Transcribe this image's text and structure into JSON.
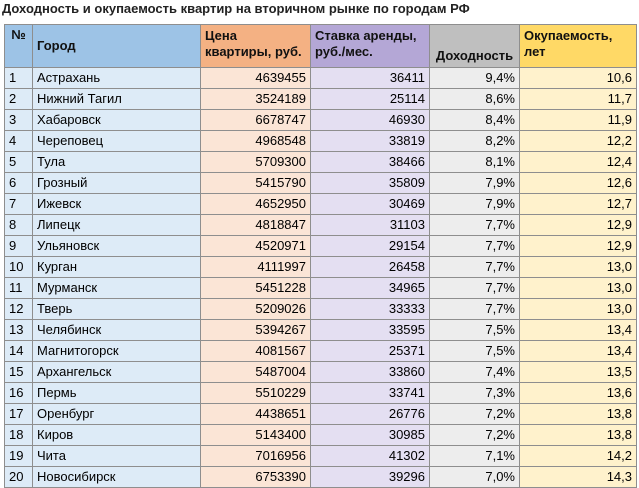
{
  "title": "Доходность и окупаемость квартир на вторичном рынке по городам РФ",
  "table": {
    "headers": {
      "num": "№",
      "city": "Город",
      "price": "Цена квартиры, руб.",
      "rent": "Ставка аренды, руб./мес.",
      "yield": "Доходность",
      "payback": "Окупаемость, лет"
    },
    "rows": [
      {
        "num": "1",
        "city": "Астрахань",
        "price": "4639455",
        "rent": "36411",
        "yield": "9,4%",
        "payback": "10,6"
      },
      {
        "num": "2",
        "city": "Нижний Тагил",
        "price": "3524189",
        "rent": "25114",
        "yield": "8,6%",
        "payback": "11,7"
      },
      {
        "num": "3",
        "city": "Хабаровск",
        "price": "6678747",
        "rent": "46930",
        "yield": "8,4%",
        "payback": "11,9"
      },
      {
        "num": "4",
        "city": "Череповец",
        "price": "4968548",
        "rent": "33819",
        "yield": "8,2%",
        "payback": "12,2"
      },
      {
        "num": "5",
        "city": "Тула",
        "price": "5709300",
        "rent": "38466",
        "yield": "8,1%",
        "payback": "12,4"
      },
      {
        "num": "6",
        "city": "Грозный",
        "price": "5415790",
        "rent": "35809",
        "yield": "7,9%",
        "payback": "12,6"
      },
      {
        "num": "7",
        "city": "Ижевск",
        "price": "4652950",
        "rent": "30469",
        "yield": "7,9%",
        "payback": "12,7"
      },
      {
        "num": "8",
        "city": "Липецк",
        "price": "4818847",
        "rent": "31103",
        "yield": "7,7%",
        "payback": "12,9"
      },
      {
        "num": "9",
        "city": "Ульяновск",
        "price": "4520971",
        "rent": "29154",
        "yield": "7,7%",
        "payback": "12,9"
      },
      {
        "num": "10",
        "city": "Курган",
        "price": "4111997",
        "rent": "26458",
        "yield": "7,7%",
        "payback": "13,0"
      },
      {
        "num": "11",
        "city": "Мурманск",
        "price": "5451228",
        "rent": "34965",
        "yield": "7,7%",
        "payback": "13,0"
      },
      {
        "num": "12",
        "city": "Тверь",
        "price": "5209026",
        "rent": "33333",
        "yield": "7,7%",
        "payback": "13,0"
      },
      {
        "num": "13",
        "city": "Челябинск",
        "price": "5394267",
        "rent": "33595",
        "yield": "7,5%",
        "payback": "13,4"
      },
      {
        "num": "14",
        "city": "Магнитогорск",
        "price": "4081567",
        "rent": "25371",
        "yield": "7,5%",
        "payback": "13,4"
      },
      {
        "num": "15",
        "city": "Архангельск",
        "price": "5487004",
        "rent": "33860",
        "yield": "7,4%",
        "payback": "13,5"
      },
      {
        "num": "16",
        "city": "Пермь",
        "price": "5510229",
        "rent": "33741",
        "yield": "7,3%",
        "payback": "13,6"
      },
      {
        "num": "17",
        "city": "Оренбург",
        "price": "4438651",
        "rent": "26776",
        "yield": "7,2%",
        "payback": "13,8"
      },
      {
        "num": "18",
        "city": "Киров",
        "price": "5143400",
        "rent": "30985",
        "yield": "7,2%",
        "payback": "13,8"
      },
      {
        "num": "19",
        "city": "Чита",
        "price": "7016956",
        "rent": "41302",
        "yield": "7,1%",
        "payback": "14,2"
      },
      {
        "num": "20",
        "city": "Новосибирск",
        "price": "6753390",
        "rent": "39296",
        "yield": "7,0%",
        "payback": "14,3"
      }
    ]
  }
}
